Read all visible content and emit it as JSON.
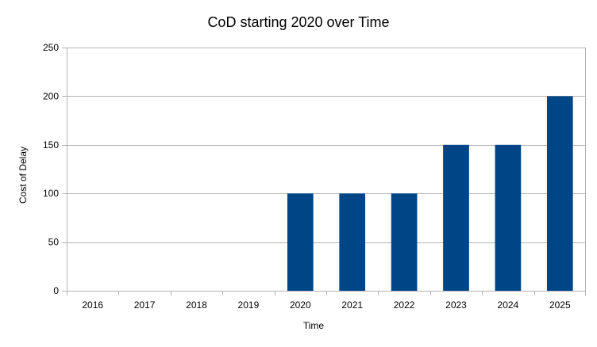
{
  "chart_data": {
    "type": "bar",
    "title": "CoD starting 2020 over Time",
    "xlabel": "Time",
    "ylabel": "Cost of Delay",
    "categories": [
      "2016",
      "2017",
      "2018",
      "2019",
      "2020",
      "2021",
      "2022",
      "2023",
      "2024",
      "2025"
    ],
    "values": [
      0,
      0,
      0,
      0,
      100,
      100,
      100,
      150,
      150,
      200
    ],
    "ylim": [
      0,
      250
    ],
    "yticks": [
      0,
      50,
      100,
      150,
      200,
      250
    ],
    "grid": true,
    "legend": "none",
    "bar_color": "#004586",
    "grid_color": "#b3b3b3"
  }
}
